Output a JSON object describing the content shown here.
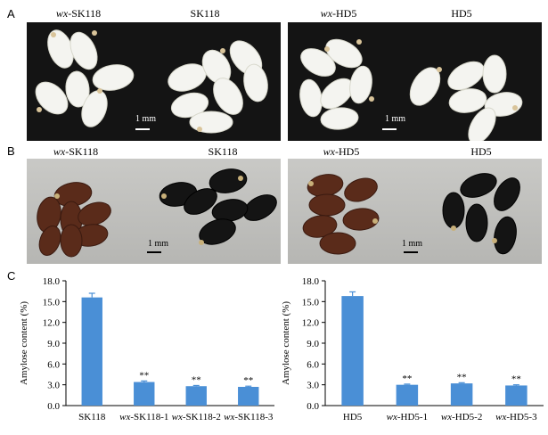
{
  "panels": {
    "a": {
      "letter": "A",
      "left": {
        "captions": [
          {
            "prefix": "wx",
            "rest": "-SK118"
          },
          {
            "prefix": "",
            "rest": "SK118"
          }
        ],
        "scale": "1 mm"
      },
      "right": {
        "captions": [
          {
            "prefix": "wx",
            "rest": "-HD5"
          },
          {
            "prefix": "",
            "rest": "HD5"
          }
        ],
        "scale": "1 mm"
      }
    },
    "b": {
      "letter": "B",
      "left": {
        "captions": [
          {
            "prefix": "wx",
            "rest": "-SK118"
          },
          {
            "prefix": "",
            "rest": "SK118"
          }
        ],
        "scale": "1 mm"
      },
      "right": {
        "captions": [
          {
            "prefix": "wx",
            "rest": "-HD5"
          },
          {
            "prefix": "",
            "rest": "HD5"
          }
        ],
        "scale": "1 mm"
      }
    },
    "c": {
      "letter": "C"
    }
  },
  "chart_data": [
    {
      "type": "bar",
      "categories": [
        {
          "prefix": "",
          "rest": "SK118"
        },
        {
          "prefix": "wx",
          "rest": "-SK118-1"
        },
        {
          "prefix": "wx",
          "rest": "-SK118-2"
        },
        {
          "prefix": "wx",
          "rest": "-SK118-3"
        }
      ],
      "values": [
        15.6,
        3.4,
        2.8,
        2.7
      ],
      "errors": [
        0.6,
        0.15,
        0.1,
        0.1
      ],
      "significance": [
        "",
        "**",
        "**",
        "**"
      ],
      "ylabel": "Amylose content (%)",
      "ylim": [
        0,
        18
      ],
      "yticks": [
        "0.0",
        "3.0",
        "6.0",
        "9.0",
        "12.0",
        "15.0",
        "18.0"
      ],
      "bar_color": "#4a8fd6"
    },
    {
      "type": "bar",
      "categories": [
        {
          "prefix": "",
          "rest": "HD5"
        },
        {
          "prefix": "wx",
          "rest": "-HD5-1"
        },
        {
          "prefix": "wx",
          "rest": "-HD5-2"
        },
        {
          "prefix": "wx",
          "rest": "-HD5-3"
        }
      ],
      "values": [
        15.8,
        3.0,
        3.2,
        2.9
      ],
      "errors": [
        0.6,
        0.1,
        0.1,
        0.1
      ],
      "significance": [
        "",
        "**",
        "**",
        "**"
      ],
      "ylabel": "Amylose content (%)",
      "ylim": [
        0,
        18
      ],
      "yticks": [
        "0.0",
        "3.0",
        "6.0",
        "9.0",
        "12.0",
        "15.0",
        "18.0"
      ],
      "bar_color": "#4a8fd6"
    }
  ]
}
